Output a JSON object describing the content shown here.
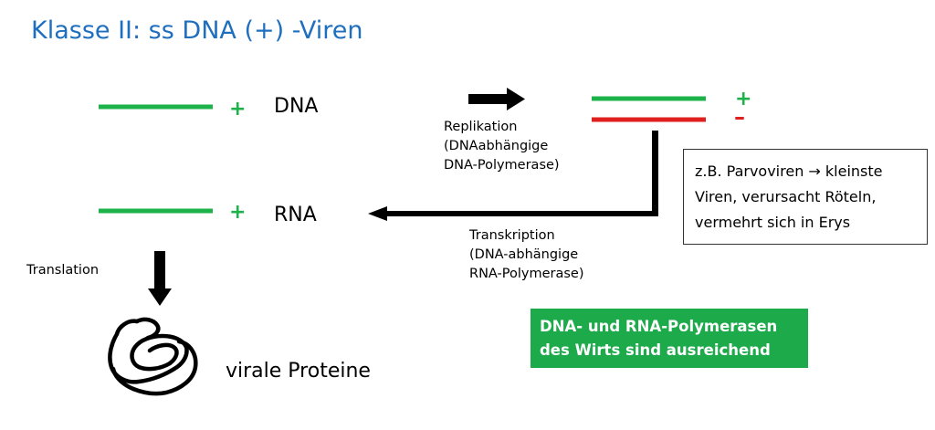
{
  "title": "Klasse II: ss DNA (+) -Viren",
  "dna": {
    "label": "DNA",
    "sign": "+"
  },
  "rna": {
    "label": "RNA",
    "sign": "+"
  },
  "double_strand": {
    "plus_sign": "+",
    "minus_sign": "–"
  },
  "replication": {
    "label": "Replikation\n(DNAabhängige\nDNA-Polymerase)"
  },
  "transcription": {
    "label": "Transkription\n(DNA-abhängige\nRNA-Polymerase)"
  },
  "translation": {
    "label": "Translation"
  },
  "proteins": {
    "label": "virale Proteine"
  },
  "note": {
    "text": "z.B. Parvoviren → kleinste\nViren, verursacht Röteln,\nvermehrt sich in Erys"
  },
  "highlight": {
    "text": "DNA- und RNA-Polymerasen\ndes Wirts sind ausreichend"
  },
  "colors": {
    "title": "#1f6fbf",
    "plus_strand": "#1db34a",
    "minus_strand": "#e0201e",
    "highlight_bg": "#1caa4b"
  }
}
